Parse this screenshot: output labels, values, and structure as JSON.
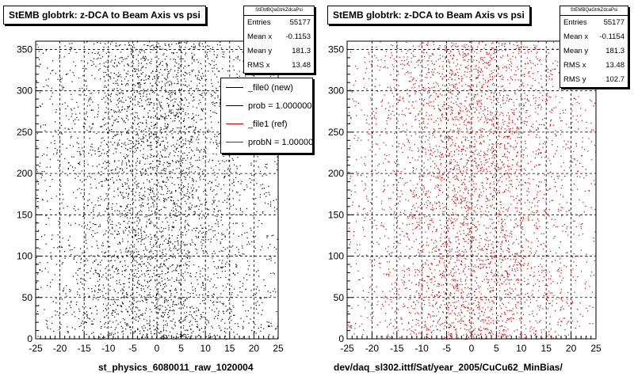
{
  "chart_data": [
    {
      "type": "scatter",
      "title": "StEMB globtrk: z-DCA to Beam Axis vs psi",
      "marker_color": "#000000",
      "xlim": [
        -25,
        25
      ],
      "ylim": [
        0,
        360
      ],
      "xticks": [
        "-25",
        "-20",
        "-15",
        "-10",
        "-5",
        "0",
        "5",
        "10",
        "15",
        "20",
        "25"
      ],
      "yticks": [
        "0",
        "50",
        "100",
        "150",
        "200",
        "250",
        "300",
        "350"
      ],
      "grid": true,
      "xlabel": "st_physics_6080011_raw_1020004",
      "stats": {
        "name": "StEMBQaGtrkZdcaPsi",
        "rows": [
          {
            "label": "Entries",
            "value": "55177"
          },
          {
            "label": "Mean x",
            "value": "-0.1153"
          },
          {
            "label": "Mean y",
            "value": "181.3"
          },
          {
            "label": "RMS x",
            "value": "13.48"
          }
        ]
      },
      "legend": {
        "entries": [
          {
            "label": "_file0 (new)",
            "color": "#000000"
          },
          {
            "label": "prob = 1.000000",
            "color": "#000000"
          },
          {
            "label": "_file1 (ref)",
            "color": "#cc0000"
          },
          {
            "label": "probN = 1.000000",
            "color": "#cc0000"
          }
        ]
      }
    },
    {
      "type": "scatter",
      "title": "StEMB globtrk: z-DCA to Beam Axis vs psi",
      "marker_color": "#dd0000",
      "xlim": [
        -25,
        25
      ],
      "ylim": [
        0,
        360
      ],
      "xticks": [
        "-25",
        "-20",
        "-15",
        "-10",
        "-5",
        "0",
        "5",
        "10",
        "15",
        "20",
        "25"
      ],
      "yticks": [
        "0",
        "50",
        "100",
        "150",
        "200",
        "250",
        "300",
        "350"
      ],
      "grid": true,
      "xlabel": "dev/daq_sl302.ittf/Sat/year_2005/CuCu62_MinBias/",
      "stats": {
        "name": "StEMBQaGtrkZdcaPsi",
        "rows": [
          {
            "label": "Entries",
            "value": "55177"
          },
          {
            "label": "Mean x",
            "value": "-0.1154"
          },
          {
            "label": "Mean y",
            "value": "181.3"
          },
          {
            "label": "RMS x",
            "value": "13.48"
          },
          {
            "label": "RMS y",
            "value": "102.7"
          }
        ]
      }
    }
  ]
}
